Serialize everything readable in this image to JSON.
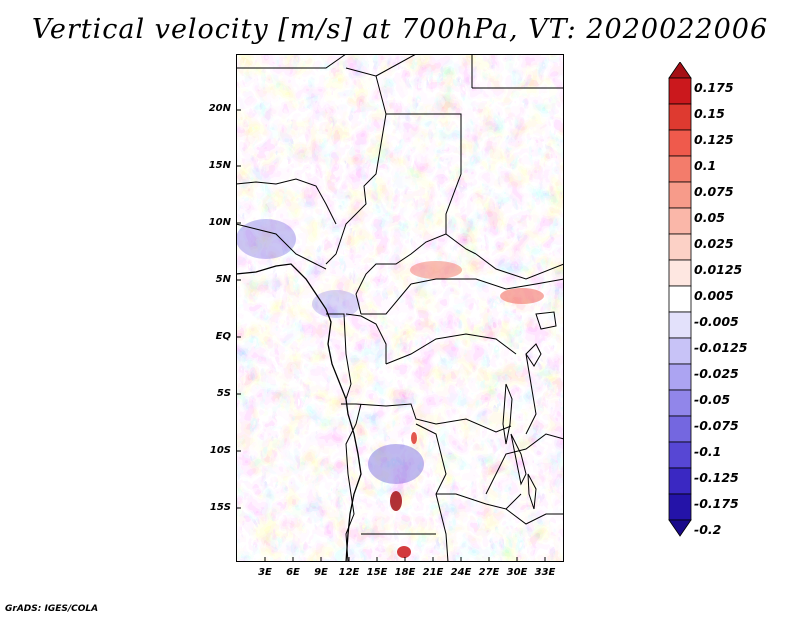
{
  "title": "Vertical velocity [m/s] at 700hPa, VT: 2020022006",
  "credit": "GrADS: IGES/COLA",
  "axes": {
    "lat_labels": [
      "20N",
      "15N",
      "10N",
      "5N",
      "EQ",
      "5S",
      "10S",
      "15S"
    ],
    "lon_labels": [
      "3E",
      "6E",
      "9E",
      "12E",
      "15E",
      "18E",
      "21E",
      "24E",
      "27E",
      "30E",
      "33E"
    ]
  },
  "colorbar": {
    "labels": [
      "0.175",
      "0.15",
      "0.125",
      "0.1",
      "0.075",
      "0.05",
      "0.025",
      "0.0125",
      "0.005",
      "-0.005",
      "-0.0125",
      "-0.025",
      "-0.05",
      "-0.075",
      "-0.1",
      "-0.125",
      "-0.175",
      "-0.2"
    ],
    "colors": [
      "#a50f15",
      "#cb181d",
      "#de3a30",
      "#ef5a4c",
      "#f37c6b",
      "#f79b8a",
      "#fab7a9",
      "#fcd1c6",
      "#fee7e1",
      "#ffffff",
      "#e3e1fb",
      "#c8c3f7",
      "#aca4f2",
      "#9186ea",
      "#7467e0",
      "#5747d4",
      "#3a28c2",
      "#2413a8",
      "#1a0a8a"
    ]
  }
}
